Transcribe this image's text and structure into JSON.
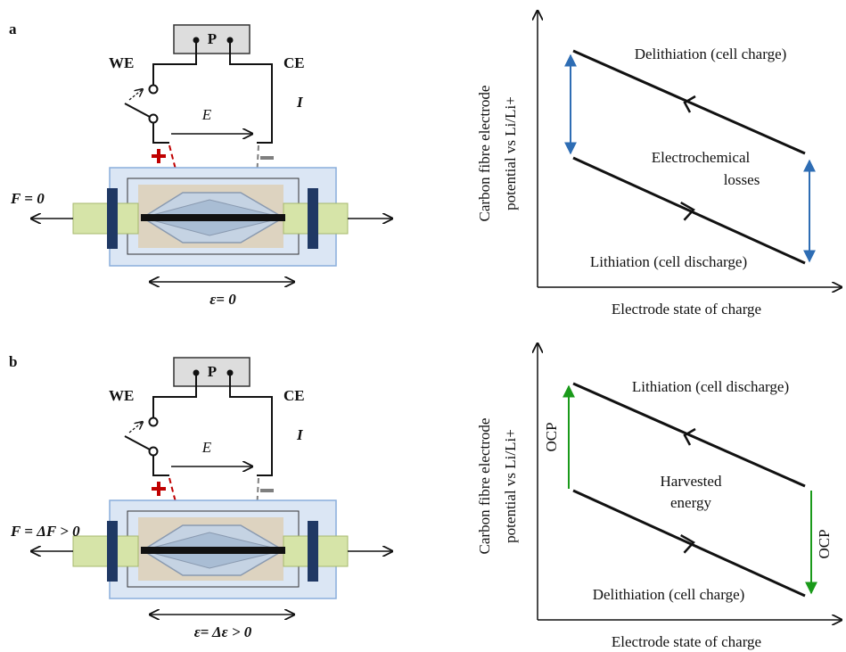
{
  "panels": [
    {
      "label": "a",
      "circuit": {
        "potentiostat": "P",
        "we": "WE",
        "ce": "CE",
        "field": "E",
        "current": "I",
        "force": "F = 0",
        "strain": "ε= 0"
      },
      "plot": {
        "y_label": [
          "Carbon fibre electrode",
          "potential vs Li/Li+"
        ],
        "x_label": "Electrode state of charge",
        "upper": "Delithiation (cell charge)",
        "lower": "Lithiation (cell discharge)",
        "middle": [
          "Electrochemical",
          "losses"
        ],
        "accent_color": "#2e6db4"
      }
    },
    {
      "label": "b",
      "circuit": {
        "potentiostat": "P",
        "we": "WE",
        "ce": "CE",
        "field": "E",
        "current": "I",
        "force": "F = ΔF > 0",
        "strain": "ε= Δε > 0"
      },
      "plot": {
        "y_label": [
          "Carbon fibre electrode",
          "potential vs Li/Li+"
        ],
        "x_label": "Electrode state of charge",
        "upper": "Lithiation (cell discharge)",
        "lower": "Delithiation (cell charge)",
        "middle": [
          "Harvested",
          "energy"
        ],
        "gap_labels": [
          "OCP",
          "OCP"
        ],
        "accent_color": "#1a9a1a"
      }
    }
  ]
}
